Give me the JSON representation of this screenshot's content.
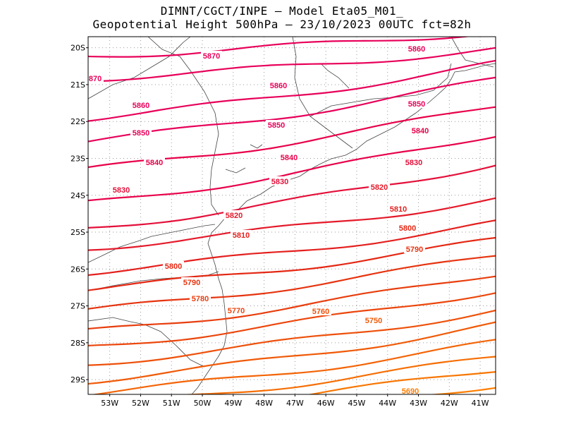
{
  "title_line1": "DIMNT/CGCT/INPE –  Model Eta05_M01_",
  "title_line2": "Geopotential Height 500hPa –  23/10/2023 00UTC fct=82h",
  "map": {
    "lon_range": [
      -53.7,
      -40.5
    ],
    "lat_range": [
      -29.4,
      -19.7
    ],
    "lat_ticks": [
      "20S",
      "21S",
      "22S",
      "23S",
      "24S",
      "25S",
      "26S",
      "27S",
      "28S",
      "29S"
    ],
    "lon_ticks": [
      "53W",
      "52W",
      "51W",
      "50W",
      "49W",
      "48W",
      "47W",
      "46W",
      "45W",
      "44W",
      "43W",
      "42W",
      "41W"
    ],
    "grid": "dotted",
    "contour_interval": 10,
    "contour_labels": [
      {
        "text": "5870",
        "color": "#e8005a"
      },
      {
        "text": "5860",
        "color": "#e8005a"
      },
      {
        "text": "5850",
        "color": "#e8005a"
      },
      {
        "text": "5840",
        "color": "#e8004a"
      },
      {
        "text": "5830",
        "color": "#e4103a"
      },
      {
        "text": "5820",
        "color": "#e41a2a"
      },
      {
        "text": "5810",
        "color": "#e4201e"
      },
      {
        "text": "5800",
        "color": "#e42814"
      },
      {
        "text": "5790",
        "color": "#e63410"
      },
      {
        "text": "5780",
        "color": "#e83e0e"
      },
      {
        "text": "5770",
        "color": "#ec460c"
      },
      {
        "text": "5760",
        "color": "#ee500a"
      },
      {
        "text": "5750",
        "color": "#f05a08"
      },
      {
        "text": "5690",
        "color": "#ff7e00"
      }
    ]
  }
}
